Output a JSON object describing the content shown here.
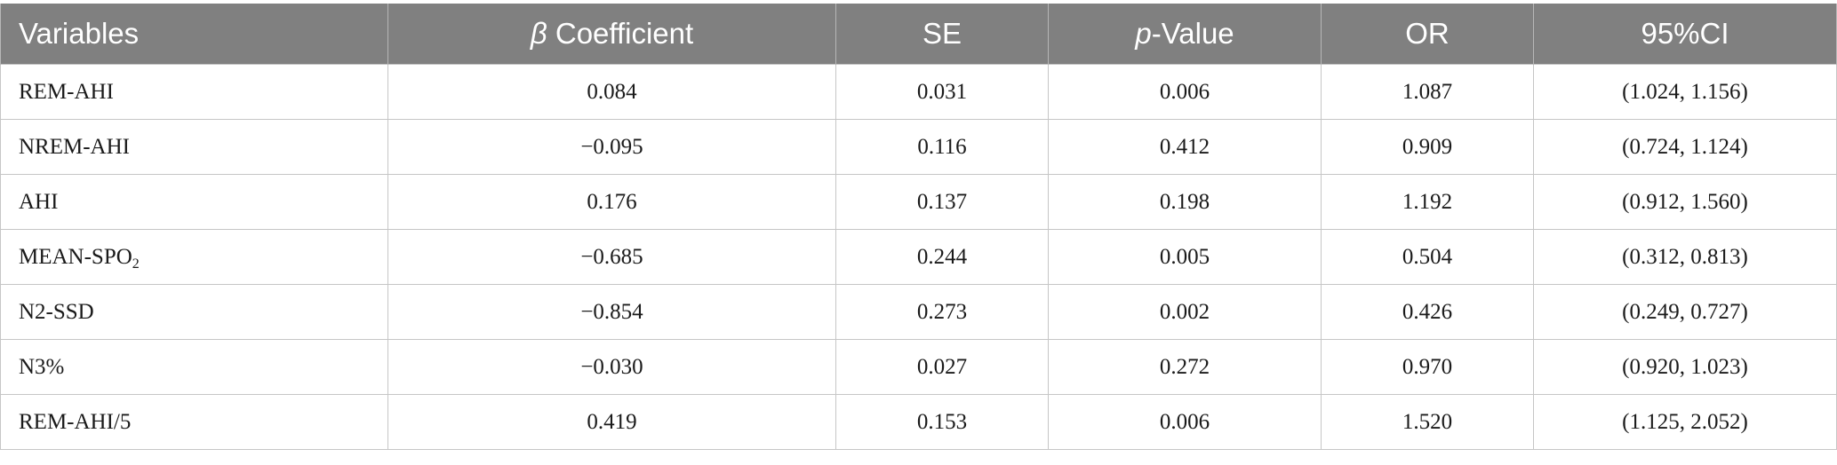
{
  "table": {
    "headers": [
      {
        "pre_italic": "",
        "italic": "",
        "post": "Variables"
      },
      {
        "pre_italic": "",
        "italic": "β",
        "post": " Coefficient"
      },
      {
        "pre_italic": "",
        "italic": "",
        "post": "SE"
      },
      {
        "pre_italic": "",
        "italic": "p",
        "post": "-Value"
      },
      {
        "pre_italic": "",
        "italic": "",
        "post": "OR"
      },
      {
        "pre_italic": "",
        "italic": "",
        "post": "95%CI"
      }
    ],
    "rows": [
      {
        "variable": "REM-AHI",
        "variable_sub": "",
        "beta": "0.084",
        "se": "0.031",
        "p": "0.006",
        "or": "1.087",
        "ci": "(1.024, 1.156)"
      },
      {
        "variable": "NREM-AHI",
        "variable_sub": "",
        "beta": "−0.095",
        "se": "0.116",
        "p": "0.412",
        "or": "0.909",
        "ci": "(0.724, 1.124)"
      },
      {
        "variable": "AHI",
        "variable_sub": "",
        "beta": "0.176",
        "se": "0.137",
        "p": "0.198",
        "or": "1.192",
        "ci": "(0.912, 1.560)"
      },
      {
        "variable": "MEAN-SPO",
        "variable_sub": "2",
        "beta": "−0.685",
        "se": "0.244",
        "p": "0.005",
        "or": "0.504",
        "ci": "(0.312, 0.813)"
      },
      {
        "variable": "N2-SSD",
        "variable_sub": "",
        "beta": "−0.854",
        "se": "0.273",
        "p": "0.002",
        "or": "0.426",
        "ci": "(0.249, 0.727)"
      },
      {
        "variable": "N3%",
        "variable_sub": "",
        "beta": "−0.030",
        "se": "0.027",
        "p": "0.272",
        "or": "0.970",
        "ci": "(0.920, 1.023)"
      },
      {
        "variable": "REM-AHI/5",
        "variable_sub": "",
        "beta": "0.419",
        "se": "0.153",
        "p": "0.006",
        "or": "1.520",
        "ci": "(1.125, 2.052)"
      }
    ]
  }
}
